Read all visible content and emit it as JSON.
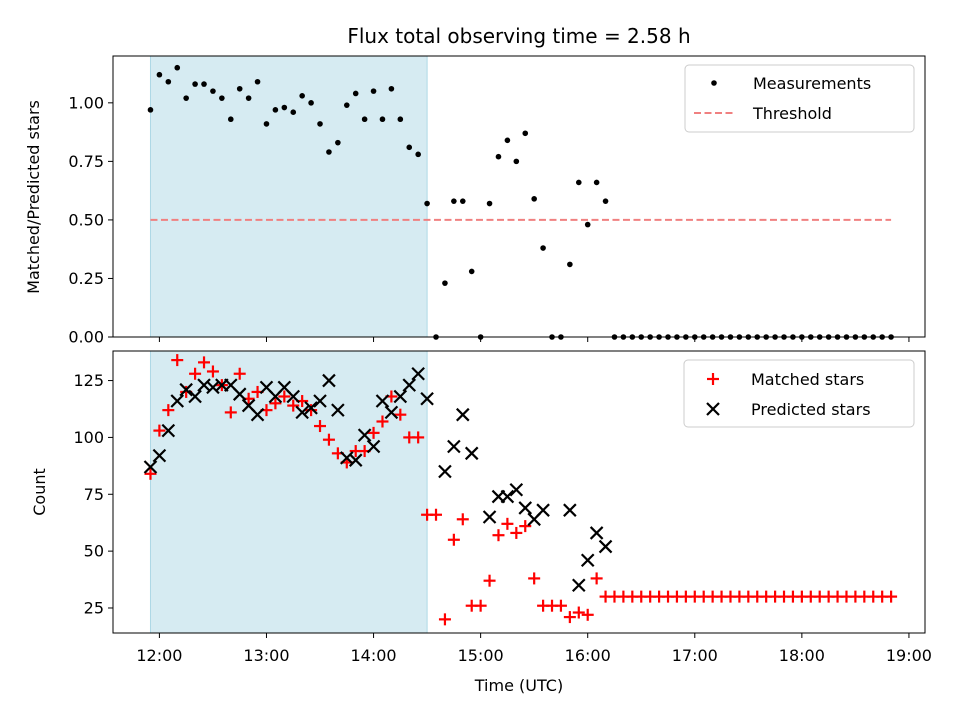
{
  "chart_data": [
    {
      "type": "scatter",
      "title": "Flux total observing time = 2.58 h",
      "ylabel": "Matched/Predicted stars",
      "xlim": [
        "11:34",
        "19:09"
      ],
      "ylim": [
        0,
        1.2
      ],
      "ytick_labels": [
        "0.00",
        "0.25",
        "0.50",
        "0.75",
        "1.00"
      ],
      "yticks": [
        0,
        0.25,
        0.5,
        0.75,
        1.0
      ],
      "xtick_values": [
        "12:00",
        "13:00",
        "14:00",
        "15:00",
        "16:00",
        "17:00",
        "18:00",
        "19:00"
      ],
      "shaded_span": [
        "11:55",
        "14:30"
      ],
      "shade_color": "#add8e6",
      "threshold": {
        "name": "Threshold",
        "value": 0.5,
        "x_range": [
          "11:55",
          "18:50"
        ],
        "color": "#f08080"
      },
      "legend": {
        "position": "upper-right",
        "entries": [
          "Measurements",
          "Threshold"
        ]
      },
      "series": [
        {
          "name": "Measurements",
          "marker": "dot",
          "color": "#000000",
          "points": [
            [
              "11:55",
              0.97
            ],
            [
              "12:00",
              1.12
            ],
            [
              "12:05",
              1.09
            ],
            [
              "12:10",
              1.15
            ],
            [
              "12:15",
              1.02
            ],
            [
              "12:20",
              1.08
            ],
            [
              "12:25",
              1.08
            ],
            [
              "12:30",
              1.05
            ],
            [
              "12:35",
              1.02
            ],
            [
              "12:40",
              0.93
            ],
            [
              "12:45",
              1.06
            ],
            [
              "12:50",
              1.02
            ],
            [
              "12:55",
              1.09
            ],
            [
              "13:00",
              0.91
            ],
            [
              "13:05",
              0.97
            ],
            [
              "13:10",
              0.98
            ],
            [
              "13:15",
              0.96
            ],
            [
              "13:20",
              1.03
            ],
            [
              "13:25",
              1.0
            ],
            [
              "13:30",
              0.91
            ],
            [
              "13:35",
              0.79
            ],
            [
              "13:40",
              0.83
            ],
            [
              "13:45",
              0.99
            ],
            [
              "13:50",
              1.04
            ],
            [
              "13:55",
              0.93
            ],
            [
              "14:00",
              1.05
            ],
            [
              "14:05",
              0.93
            ],
            [
              "14:10",
              1.06
            ],
            [
              "14:15",
              0.93
            ],
            [
              "14:20",
              0.81
            ],
            [
              "14:25",
              0.78
            ],
            [
              "14:30",
              0.57
            ],
            [
              "14:35",
              0.0
            ],
            [
              "14:40",
              0.23
            ],
            [
              "14:45",
              0.58
            ],
            [
              "14:50",
              0.58
            ],
            [
              "14:55",
              0.28
            ],
            [
              "15:00",
              0.0
            ],
            [
              "15:05",
              0.57
            ],
            [
              "15:10",
              0.77
            ],
            [
              "15:15",
              0.84
            ],
            [
              "15:20",
              0.75
            ],
            [
              "15:25",
              0.87
            ],
            [
              "15:30",
              0.59
            ],
            [
              "15:35",
              0.38
            ],
            [
              "15:40",
              0.0
            ],
            [
              "15:45",
              0.0
            ],
            [
              "15:50",
              0.31
            ],
            [
              "15:55",
              0.66
            ],
            [
              "16:00",
              0.48
            ],
            [
              "16:05",
              0.66
            ],
            [
              "16:10",
              0.58
            ],
            [
              "16:15",
              0.0
            ],
            [
              "16:20",
              0.0
            ],
            [
              "16:25",
              0.0
            ],
            [
              "16:30",
              0.0
            ],
            [
              "16:35",
              0.0
            ],
            [
              "16:40",
              0.0
            ],
            [
              "16:45",
              0.0
            ],
            [
              "16:50",
              0.0
            ],
            [
              "16:55",
              0.0
            ],
            [
              "17:00",
              0.0
            ],
            [
              "17:05",
              0.0
            ],
            [
              "17:10",
              0.0
            ],
            [
              "17:15",
              0.0
            ],
            [
              "17:20",
              0.0
            ],
            [
              "17:25",
              0.0
            ],
            [
              "17:30",
              0.0
            ],
            [
              "17:35",
              0.0
            ],
            [
              "17:40",
              0.0
            ],
            [
              "17:45",
              0.0
            ],
            [
              "17:50",
              0.0
            ],
            [
              "17:55",
              0.0
            ],
            [
              "18:00",
              0.0
            ],
            [
              "18:05",
              0.0
            ],
            [
              "18:10",
              0.0
            ],
            [
              "18:15",
              0.0
            ],
            [
              "18:20",
              0.0
            ],
            [
              "18:25",
              0.0
            ],
            [
              "18:30",
              0.0
            ],
            [
              "18:35",
              0.0
            ],
            [
              "18:40",
              0.0
            ],
            [
              "18:45",
              0.0
            ],
            [
              "18:50",
              0.0
            ]
          ]
        }
      ]
    },
    {
      "type": "scatter",
      "xlabel": "Time (UTC)",
      "ylabel": "Count",
      "xlim": [
        "11:34",
        "19:09"
      ],
      "ylim": [
        14,
        138
      ],
      "yticks": [
        25,
        50,
        75,
        100,
        125
      ],
      "ytick_labels": [
        "25",
        "50",
        "75",
        "100",
        "125"
      ],
      "xtick_labels": [
        "12:00",
        "13:00",
        "14:00",
        "15:00",
        "16:00",
        "17:00",
        "18:00",
        "19:00"
      ],
      "xtick_values": [
        "12:00",
        "13:00",
        "14:00",
        "15:00",
        "16:00",
        "17:00",
        "18:00",
        "19:00"
      ],
      "shaded_span": [
        "11:55",
        "14:30"
      ],
      "shade_color": "#add8e6",
      "legend": {
        "position": "upper-right",
        "entries": [
          "Matched stars",
          "Predicted stars"
        ]
      },
      "series": [
        {
          "name": "Matched stars",
          "marker": "plus",
          "color": "#ff0000",
          "points": [
            [
              "11:55",
              84
            ],
            [
              "12:00",
              103
            ],
            [
              "12:05",
              112
            ],
            [
              "12:10",
              134
            ],
            [
              "12:15",
              120
            ],
            [
              "12:20",
              128
            ],
            [
              "12:25",
              133
            ],
            [
              "12:30",
              129
            ],
            [
              "12:35",
              123
            ],
            [
              "12:40",
              111
            ],
            [
              "12:45",
              128
            ],
            [
              "12:50",
              117
            ],
            [
              "12:55",
              120
            ],
            [
              "13:00",
              112
            ],
            [
              "13:05",
              115
            ],
            [
              "13:10",
              118
            ],
            [
              "13:15",
              114
            ],
            [
              "13:20",
              116
            ],
            [
              "13:25",
              112
            ],
            [
              "13:30",
              105
            ],
            [
              "13:35",
              99
            ],
            [
              "13:40",
              93
            ],
            [
              "13:45",
              89
            ],
            [
              "13:50",
              94
            ],
            [
              "13:55",
              94
            ],
            [
              "14:00",
              102
            ],
            [
              "14:05",
              107
            ],
            [
              "14:10",
              118
            ],
            [
              "14:15",
              110
            ],
            [
              "14:20",
              100
            ],
            [
              "14:25",
              100
            ],
            [
              "14:30",
              66
            ],
            [
              "14:35",
              66
            ],
            [
              "14:40",
              20
            ],
            [
              "14:45",
              55
            ],
            [
              "14:50",
              64
            ],
            [
              "14:55",
              26
            ],
            [
              "15:00",
              26
            ],
            [
              "15:05",
              37
            ],
            [
              "15:10",
              57
            ],
            [
              "15:15",
              62
            ],
            [
              "15:20",
              58
            ],
            [
              "15:25",
              61
            ],
            [
              "15:30",
              38
            ],
            [
              "15:35",
              26
            ],
            [
              "15:40",
              26
            ],
            [
              "15:45",
              26
            ],
            [
              "15:50",
              21
            ],
            [
              "15:55",
              23
            ],
            [
              "16:00",
              22
            ],
            [
              "16:05",
              38
            ],
            [
              "16:10",
              30
            ],
            [
              "16:15",
              30
            ],
            [
              "16:20",
              30
            ],
            [
              "16:25",
              30
            ],
            [
              "16:30",
              30
            ],
            [
              "16:35",
              30
            ],
            [
              "16:40",
              30
            ],
            [
              "16:45",
              30
            ],
            [
              "16:50",
              30
            ],
            [
              "16:55",
              30
            ],
            [
              "17:00",
              30
            ],
            [
              "17:05",
              30
            ],
            [
              "17:10",
              30
            ],
            [
              "17:15",
              30
            ],
            [
              "17:20",
              30
            ],
            [
              "17:25",
              30
            ],
            [
              "17:30",
              30
            ],
            [
              "17:35",
              30
            ],
            [
              "17:40",
              30
            ],
            [
              "17:45",
              30
            ],
            [
              "17:50",
              30
            ],
            [
              "17:55",
              30
            ],
            [
              "18:00",
              30
            ],
            [
              "18:05",
              30
            ],
            [
              "18:10",
              30
            ],
            [
              "18:15",
              30
            ],
            [
              "18:20",
              30
            ],
            [
              "18:25",
              30
            ],
            [
              "18:30",
              30
            ],
            [
              "18:35",
              30
            ],
            [
              "18:40",
              30
            ],
            [
              "18:45",
              30
            ],
            [
              "18:50",
              30
            ]
          ]
        },
        {
          "name": "Predicted stars",
          "marker": "x",
          "color": "#000000",
          "points": [
            [
              "11:55",
              87
            ],
            [
              "12:00",
              92
            ],
            [
              "12:05",
              103
            ],
            [
              "12:10",
              116
            ],
            [
              "12:15",
              121
            ],
            [
              "12:20",
              118
            ],
            [
              "12:25",
              123
            ],
            [
              "12:30",
              122
            ],
            [
              "12:35",
              123
            ],
            [
              "12:40",
              123
            ],
            [
              "12:45",
              119
            ],
            [
              "12:50",
              114
            ],
            [
              "12:55",
              110
            ],
            [
              "13:00",
              122
            ],
            [
              "13:05",
              118
            ],
            [
              "13:10",
              122
            ],
            [
              "13:15",
              118
            ],
            [
              "13:20",
              111
            ],
            [
              "13:25",
              113
            ],
            [
              "13:30",
              116
            ],
            [
              "13:35",
              125
            ],
            [
              "13:40",
              112
            ],
            [
              "13:45",
              91
            ],
            [
              "13:50",
              90
            ],
            [
              "13:55",
              101
            ],
            [
              "14:00",
              96
            ],
            [
              "14:05",
              116
            ],
            [
              "14:10",
              111
            ],
            [
              "14:15",
              118
            ],
            [
              "14:20",
              123
            ],
            [
              "14:25",
              128
            ],
            [
              "14:30",
              117
            ],
            [
              "14:40",
              85
            ],
            [
              "14:45",
              96
            ],
            [
              "14:50",
              110
            ],
            [
              "14:55",
              93
            ],
            [
              "15:05",
              65
            ],
            [
              "15:10",
              74
            ],
            [
              "15:15",
              74
            ],
            [
              "15:20",
              77
            ],
            [
              "15:25",
              69
            ],
            [
              "15:30",
              64
            ],
            [
              "15:35",
              68
            ],
            [
              "15:50",
              68
            ],
            [
              "15:55",
              35
            ],
            [
              "16:00",
              46
            ],
            [
              "16:05",
              58
            ],
            [
              "16:10",
              52
            ]
          ]
        }
      ]
    }
  ]
}
